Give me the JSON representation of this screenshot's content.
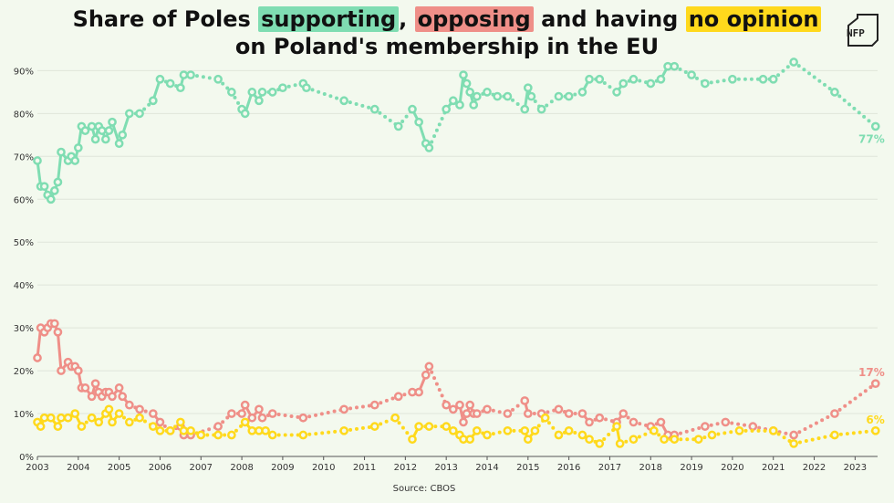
{
  "title": {
    "prefix": "Share of Poles ",
    "supporting": "supporting",
    "comma": ", ",
    "opposing": "opposing",
    "middle": " and having ",
    "no_opinion": "no opinion",
    "line2": "on Poland's membership in the EU"
  },
  "logo": "NFP",
  "source": "Source: CBOS",
  "chart_data": {
    "type": "line",
    "title": "Share of Poles supporting, opposing and having no opinion on Poland's membership in the EU",
    "xlim": [
      2003,
      2023.55
    ],
    "ylim": [
      0,
      92
    ],
    "x_ticks": [
      "2003",
      "2004",
      "2005",
      "2006",
      "2007",
      "2008",
      "2009",
      "2010",
      "2011",
      "2012",
      "2013",
      "2014",
      "2015",
      "2016",
      "2017",
      "2018",
      "2019",
      "2020",
      "2021",
      "2022",
      "2023"
    ],
    "y_ticks": [
      0,
      10,
      20,
      30,
      40,
      50,
      60,
      70,
      80,
      90
    ],
    "y_tick_labels": [
      "0%",
      "10%",
      "20%",
      "30%",
      "40%",
      "50%",
      "60%",
      "70%",
      "80%",
      "90%"
    ],
    "grid": true,
    "series": [
      {
        "name": "supporting",
        "color": "#7fddb2",
        "end_label": "77%",
        "points": [
          [
            2003.0,
            69
          ],
          [
            2003.08,
            63
          ],
          [
            2003.17,
            63
          ],
          [
            2003.25,
            61
          ],
          [
            2003.33,
            60
          ],
          [
            2003.42,
            62
          ],
          [
            2003.5,
            64
          ],
          [
            2003.58,
            71
          ],
          [
            2003.75,
            69
          ],
          [
            2003.83,
            70
          ],
          [
            2003.92,
            69
          ],
          [
            2004.0,
            72
          ],
          [
            2004.08,
            77
          ],
          [
            2004.17,
            76
          ],
          [
            2004.33,
            77
          ],
          [
            2004.42,
            74
          ],
          [
            2004.5,
            77
          ],
          [
            2004.58,
            76
          ],
          [
            2004.67,
            74
          ],
          [
            2004.75,
            76
          ],
          [
            2004.83,
            78
          ],
          [
            2005.0,
            73
          ],
          [
            2005.08,
            75
          ],
          [
            2005.25,
            80
          ],
          [
            2005.5,
            80
          ],
          [
            2005.83,
            83
          ],
          [
            2006.0,
            88
          ],
          [
            2006.25,
            87
          ],
          [
            2006.5,
            86
          ],
          [
            2006.58,
            89
          ],
          [
            2006.75,
            89
          ],
          [
            2007.42,
            88
          ],
          [
            2007.75,
            85
          ],
          [
            2008.0,
            81
          ],
          [
            2008.08,
            80
          ],
          [
            2008.25,
            85
          ],
          [
            2008.42,
            83
          ],
          [
            2008.5,
            85
          ],
          [
            2008.75,
            85
          ],
          [
            2009.0,
            86
          ],
          [
            2009.5,
            87
          ],
          [
            2009.58,
            86
          ],
          [
            2010.5,
            83
          ],
          [
            2011.25,
            81
          ],
          [
            2011.83,
            77
          ],
          [
            2012.17,
            81
          ],
          [
            2012.33,
            78
          ],
          [
            2012.5,
            73
          ],
          [
            2012.58,
            72
          ],
          [
            2013.0,
            81
          ],
          [
            2013.17,
            83
          ],
          [
            2013.33,
            82
          ],
          [
            2013.42,
            89
          ],
          [
            2013.5,
            87
          ],
          [
            2013.58,
            85
          ],
          [
            2013.67,
            82
          ],
          [
            2013.75,
            84
          ],
          [
            2014.0,
            85
          ],
          [
            2014.25,
            84
          ],
          [
            2014.5,
            84
          ],
          [
            2014.92,
            81
          ],
          [
            2015.0,
            86
          ],
          [
            2015.08,
            84
          ],
          [
            2015.33,
            81
          ],
          [
            2015.75,
            84
          ],
          [
            2016.0,
            84
          ],
          [
            2016.33,
            85
          ],
          [
            2016.5,
            88
          ],
          [
            2016.75,
            88
          ],
          [
            2017.17,
            85
          ],
          [
            2017.33,
            87
          ],
          [
            2017.58,
            88
          ],
          [
            2018.0,
            87
          ],
          [
            2018.25,
            88
          ],
          [
            2018.42,
            91
          ],
          [
            2018.58,
            91
          ],
          [
            2019.0,
            89
          ],
          [
            2019.33,
            87
          ],
          [
            2020.0,
            88
          ],
          [
            2020.75,
            88
          ],
          [
            2021.0,
            88
          ],
          [
            2021.5,
            92
          ],
          [
            2022.5,
            85
          ],
          [
            2023.5,
            77
          ]
        ]
      },
      {
        "name": "opposing",
        "color": "#ef8f88",
        "end_label": "17%",
        "points": [
          [
            2003.0,
            23
          ],
          [
            2003.08,
            30
          ],
          [
            2003.17,
            29
          ],
          [
            2003.25,
            30
          ],
          [
            2003.33,
            31
          ],
          [
            2003.42,
            31
          ],
          [
            2003.5,
            29
          ],
          [
            2003.58,
            20
          ],
          [
            2003.75,
            22
          ],
          [
            2003.83,
            21
          ],
          [
            2003.92,
            21
          ],
          [
            2004.0,
            20
          ],
          [
            2004.08,
            16
          ],
          [
            2004.17,
            16
          ],
          [
            2004.33,
            14
          ],
          [
            2004.42,
            17
          ],
          [
            2004.5,
            15
          ],
          [
            2004.58,
            14
          ],
          [
            2004.67,
            15
          ],
          [
            2004.75,
            15
          ],
          [
            2004.83,
            14
          ],
          [
            2005.0,
            16
          ],
          [
            2005.08,
            14
          ],
          [
            2005.25,
            12
          ],
          [
            2005.5,
            11
          ],
          [
            2005.83,
            10
          ],
          [
            2006.0,
            8
          ],
          [
            2006.25,
            6
          ],
          [
            2006.5,
            7
          ],
          [
            2006.58,
            5
          ],
          [
            2006.75,
            5
          ],
          [
            2007.42,
            7
          ],
          [
            2007.75,
            10
          ],
          [
            2008.0,
            10
          ],
          [
            2008.08,
            12
          ],
          [
            2008.25,
            9
          ],
          [
            2008.42,
            11
          ],
          [
            2008.5,
            9
          ],
          [
            2008.75,
            10
          ],
          [
            2009.5,
            9
          ],
          [
            2010.5,
            11
          ],
          [
            2011.25,
            12
          ],
          [
            2011.83,
            14
          ],
          [
            2012.17,
            15
          ],
          [
            2012.33,
            15
          ],
          [
            2012.5,
            19
          ],
          [
            2012.58,
            21
          ],
          [
            2013.0,
            12
          ],
          [
            2013.17,
            11
          ],
          [
            2013.33,
            12
          ],
          [
            2013.42,
            8
          ],
          [
            2013.5,
            10
          ],
          [
            2013.58,
            12
          ],
          [
            2013.67,
            10
          ],
          [
            2013.75,
            10
          ],
          [
            2014.0,
            11
          ],
          [
            2014.5,
            10
          ],
          [
            2014.92,
            13
          ],
          [
            2015.0,
            10
          ],
          [
            2015.33,
            10
          ],
          [
            2015.75,
            11
          ],
          [
            2016.0,
            10
          ],
          [
            2016.33,
            10
          ],
          [
            2016.5,
            8
          ],
          [
            2016.75,
            9
          ],
          [
            2017.17,
            8
          ],
          [
            2017.33,
            10
          ],
          [
            2017.58,
            8
          ],
          [
            2018.0,
            7
          ],
          [
            2018.25,
            8
          ],
          [
            2018.42,
            5
          ],
          [
            2018.58,
            5
          ],
          [
            2019.33,
            7
          ],
          [
            2019.83,
            8
          ],
          [
            2020.5,
            7
          ],
          [
            2021.0,
            6
          ],
          [
            2021.5,
            5
          ],
          [
            2022.5,
            10
          ],
          [
            2023.5,
            17
          ]
        ]
      },
      {
        "name": "no opinion",
        "color": "#ffd91c",
        "end_label": "6%",
        "points": [
          [
            2003.0,
            8
          ],
          [
            2003.08,
            7
          ],
          [
            2003.17,
            9
          ],
          [
            2003.33,
            9
          ],
          [
            2003.5,
            7
          ],
          [
            2003.58,
            9
          ],
          [
            2003.75,
            9
          ],
          [
            2003.92,
            10
          ],
          [
            2004.08,
            7
          ],
          [
            2004.33,
            9
          ],
          [
            2004.5,
            8
          ],
          [
            2004.67,
            10
          ],
          [
            2004.75,
            11
          ],
          [
            2004.83,
            8
          ],
          [
            2005.0,
            10
          ],
          [
            2005.25,
            8
          ],
          [
            2005.5,
            9
          ],
          [
            2005.83,
            7
          ],
          [
            2006.0,
            6
          ],
          [
            2006.25,
            6
          ],
          [
            2006.5,
            8
          ],
          [
            2006.58,
            6
          ],
          [
            2006.75,
            6
          ],
          [
            2007.0,
            5
          ],
          [
            2007.42,
            5
          ],
          [
            2007.75,
            5
          ],
          [
            2008.08,
            8
          ],
          [
            2008.25,
            6
          ],
          [
            2008.42,
            6
          ],
          [
            2008.58,
            6
          ],
          [
            2008.75,
            5
          ],
          [
            2009.5,
            5
          ],
          [
            2010.5,
            6
          ],
          [
            2011.25,
            7
          ],
          [
            2011.75,
            9
          ],
          [
            2012.17,
            4
          ],
          [
            2012.33,
            7
          ],
          [
            2012.58,
            7
          ],
          [
            2013.0,
            7
          ],
          [
            2013.17,
            6
          ],
          [
            2013.33,
            5
          ],
          [
            2013.42,
            4
          ],
          [
            2013.58,
            4
          ],
          [
            2013.75,
            6
          ],
          [
            2014.0,
            5
          ],
          [
            2014.5,
            6
          ],
          [
            2014.92,
            6
          ],
          [
            2015.0,
            4
          ],
          [
            2015.17,
            6
          ],
          [
            2015.42,
            9
          ],
          [
            2015.75,
            5
          ],
          [
            2016.0,
            6
          ],
          [
            2016.33,
            5
          ],
          [
            2016.5,
            4
          ],
          [
            2016.75,
            3
          ],
          [
            2017.17,
            7
          ],
          [
            2017.25,
            3
          ],
          [
            2017.58,
            4
          ],
          [
            2018.08,
            6
          ],
          [
            2018.33,
            4
          ],
          [
            2018.58,
            4
          ],
          [
            2019.17,
            4
          ],
          [
            2019.5,
            5
          ],
          [
            2020.17,
            6
          ],
          [
            2021.0,
            6
          ],
          [
            2021.5,
            3
          ],
          [
            2022.5,
            5
          ],
          [
            2023.5,
            6
          ]
        ]
      }
    ]
  }
}
